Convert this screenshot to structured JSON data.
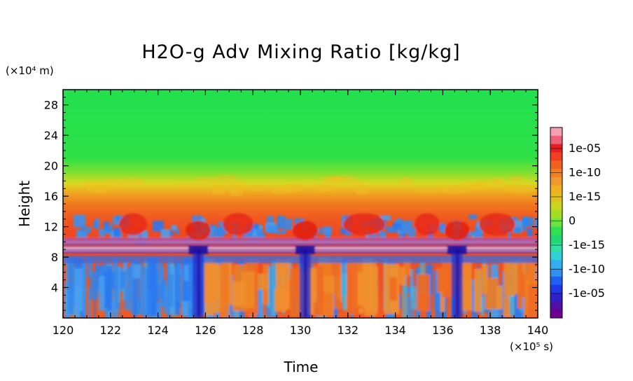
{
  "chart_data": {
    "type": "heatmap",
    "title": "H2O-g Adv Mixing Ratio [kg/kg]",
    "xlabel": "Time",
    "ylabel": "Height",
    "x_unit": "(×10⁵ s)",
    "y_unit": "(×10⁴ m)",
    "xlim": [
      120,
      140
    ],
    "ylim": [
      0,
      30
    ],
    "x_ticks": [
      "120",
      "122",
      "124",
      "126",
      "128",
      "130",
      "132",
      "134",
      "136",
      "138",
      "140"
    ],
    "y_ticks": [
      "4",
      "8",
      "12",
      "16",
      "20",
      "24",
      "28"
    ],
    "colorbar": {
      "labels": [
        "1e-05",
        "1e-10",
        "1e-15",
        "0",
        "-1e-15",
        "-1e-10",
        "-1e-05"
      ],
      "colors": [
        "#f4a0b0",
        "#f06078",
        "#e62020",
        "#f04020",
        "#f06020",
        "#f08020",
        "#f09830",
        "#f0b020",
        "#e0c020",
        "#c8d820",
        "#a0e020",
        "#70e040",
        "#30e050",
        "#20d870",
        "#30e0a0",
        "#30d0d8",
        "#30b0f0",
        "#3090f0",
        "#2060f0",
        "#2038e8",
        "#3020c8",
        "#5010a8",
        "#700090"
      ]
    },
    "regions": {
      "upper": "positive ~1e-15 (green)",
      "middle": "positive ~1e-10 (orange-red)",
      "tropopause_band": "alternating positive/negative",
      "lower": "mixed positive (orange) and negative (blue)"
    },
    "event_times": [
      125.7,
      130.2,
      136.6
    ]
  }
}
